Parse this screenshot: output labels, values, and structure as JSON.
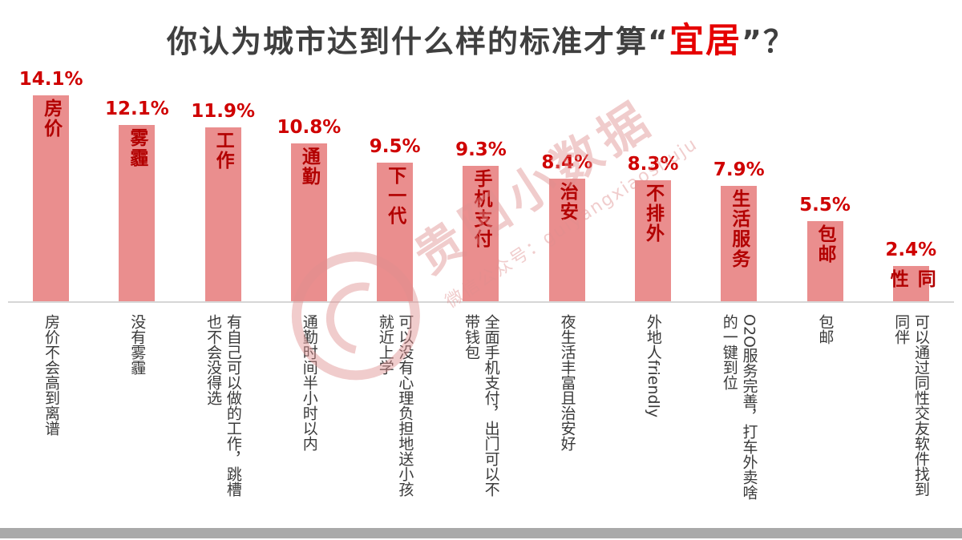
{
  "title": {
    "prefix": "你认为城市达到什么样的标准才算“",
    "highlight": "宜居",
    "suffix": "”？"
  },
  "watermark": {
    "brand": "贵阳小数据",
    "subtitle": "微信公众号：guiyangxiaoshuju"
  },
  "chart_data": {
    "type": "bar",
    "title": "你认为城市达到什么样的标准才算“宜居”？",
    "unit": "%",
    "categories": [
      "房价",
      "雾霾",
      "工作",
      "通勤",
      "下一代",
      "手机支付",
      "治安",
      "不排外",
      "生活服务",
      "包邮",
      "同性"
    ],
    "values": [
      14.1,
      12.1,
      11.9,
      10.8,
      9.5,
      9.3,
      8.4,
      8.3,
      7.9,
      5.5,
      2.4
    ],
    "value_labels": [
      "14.1%",
      "12.1%",
      "11.9%",
      "10.8%",
      "9.5%",
      "9.3%",
      "8.4%",
      "8.3%",
      "7.9%",
      "5.5%",
      "2.4%"
    ],
    "descriptions": [
      "房价不会高到离谱",
      "没有雾霾",
      "有自己可以做的工作，跳槽也不会没得选",
      "通勤时间半小时以内",
      "可以没有心理负担地送小孩就近上学",
      "全面手机支付，出门可以不带钱包",
      "夜生活丰富且治安好",
      "外地人friendly",
      "O2O服务完善，打车外卖啥的一键到位",
      "包邮",
      "可以通过同性交友软件找到同伴"
    ],
    "ylim": [
      0,
      15
    ],
    "grid": false,
    "legend": "none",
    "bar_color": "#ea8e8e",
    "bar_label_color": "#b20000",
    "value_label_color": "#cf0000",
    "accent_color": "#e60000"
  }
}
